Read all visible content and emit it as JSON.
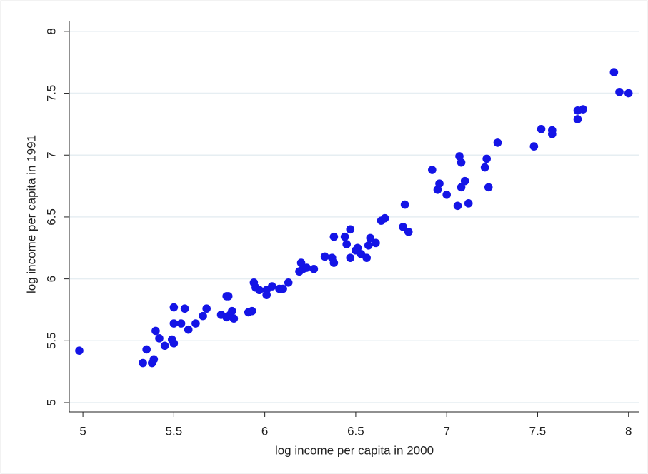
{
  "chart_data": {
    "type": "scatter",
    "x_label": "log income per capita in 2000",
    "y_label": "log income per capita in 1991",
    "color": "#1414e6",
    "grid": true,
    "xlim": [
      4.925,
      8.06
    ],
    "ylim": [
      4.925,
      8.08
    ],
    "xticks": [
      5,
      5.5,
      6,
      6.5,
      7,
      7.5,
      8
    ],
    "yticks": [
      5,
      5.5,
      6,
      6.5,
      7,
      7.5,
      8
    ],
    "x": [
      4.98,
      5.33,
      5.35,
      5.38,
      5.39,
      5.4,
      5.42,
      5.45,
      5.49,
      5.5,
      5.5,
      5.5,
      5.54,
      5.56,
      5.58,
      5.62,
      5.66,
      5.68,
      5.76,
      5.79,
      5.8,
      5.79,
      5.81,
      5.82,
      5.83,
      5.91,
      5.93,
      5.94,
      5.95,
      5.97,
      6.01,
      6.01,
      6.04,
      6.08,
      6.1,
      6.13,
      6.19,
      6.2,
      6.21,
      6.23,
      6.27,
      6.33,
      6.37,
      6.38,
      6.38,
      6.44,
      6.45,
      6.47,
      6.47,
      6.5,
      6.51,
      6.53,
      6.56,
      6.57,
      6.58,
      6.61,
      6.64,
      6.66,
      6.76,
      6.77,
      6.79,
      6.92,
      6.95,
      6.96,
      7.0,
      7.06,
      7.07,
      7.08,
      7.08,
      7.1,
      7.12,
      7.21,
      7.22,
      7.23,
      7.28,
      7.48,
      7.52,
      7.58,
      7.58,
      7.72,
      7.72,
      7.75,
      7.92,
      7.95,
      8.0
    ],
    "values": [
      5.42,
      5.32,
      5.43,
      5.32,
      5.35,
      5.58,
      5.52,
      5.46,
      5.51,
      5.64,
      5.77,
      5.48,
      5.64,
      5.76,
      5.59,
      5.64,
      5.7,
      5.76,
      5.71,
      5.86,
      5.86,
      5.69,
      5.71,
      5.74,
      5.68,
      5.73,
      5.74,
      5.97,
      5.93,
      5.91,
      5.87,
      5.91,
      5.94,
      5.92,
      5.92,
      5.97,
      6.06,
      6.13,
      6.08,
      6.09,
      6.08,
      6.18,
      6.17,
      6.13,
      6.34,
      6.34,
      6.28,
      6.4,
      6.17,
      6.23,
      6.25,
      6.2,
      6.17,
      6.27,
      6.33,
      6.29,
      6.47,
      6.49,
      6.42,
      6.6,
      6.38,
      6.88,
      6.72,
      6.77,
      6.68,
      6.59,
      6.99,
      6.74,
      6.94,
      6.79,
      6.61,
      6.9,
      6.97,
      6.74,
      7.1,
      7.07,
      7.21,
      7.2,
      7.17,
      7.29,
      7.36,
      7.37,
      7.67,
      7.51,
      7.5
    ]
  }
}
